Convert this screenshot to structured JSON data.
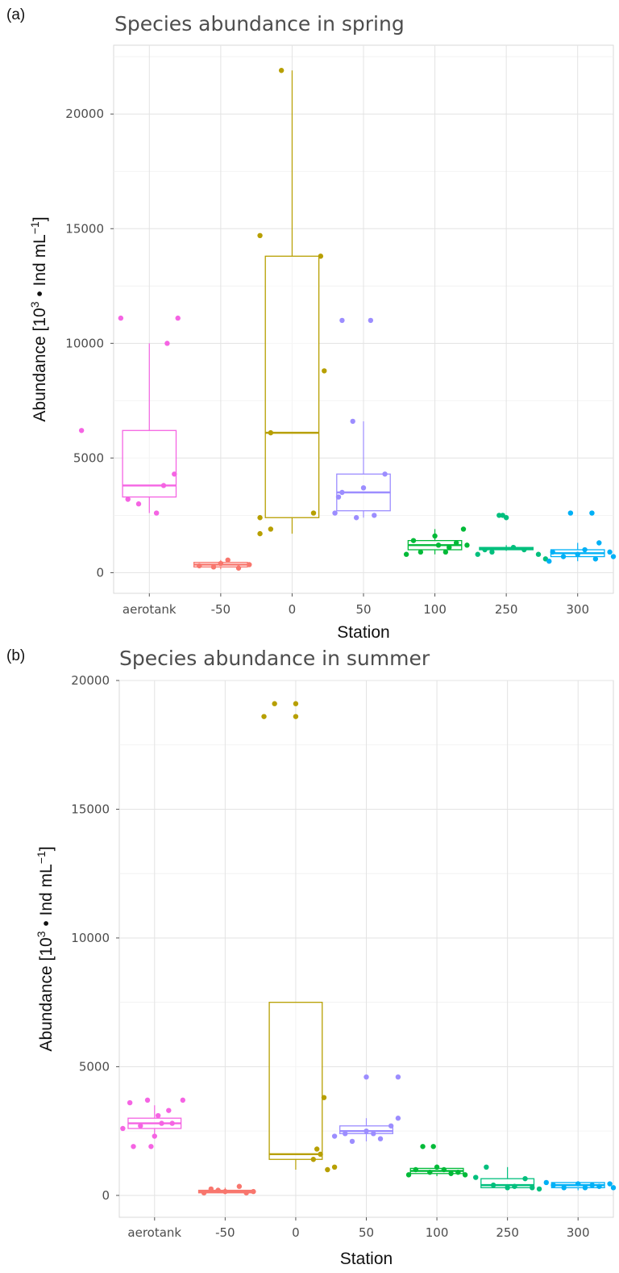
{
  "chart_data": [
    {
      "type": "box",
      "panel_label": "(a)",
      "title": "Species abundance in spring",
      "xlabel": "Station",
      "ylabel_main": "Abundance [10",
      "ylabel_sup1": "3",
      "ylabel_mid": " • Ind mL",
      "ylabel_sup2": "−1",
      "ylabel_end": "]",
      "categories": [
        "aerotank",
        "-50",
        "0",
        "50",
        "100",
        "250",
        "300"
      ],
      "yticks": [
        0,
        5000,
        10000,
        15000,
        20000
      ],
      "ylim": [
        -900,
        23000
      ],
      "grid": true,
      "legend": "none",
      "series": [
        {
          "color": "#f564e3",
          "q1": 3300,
          "median": 3800,
          "q3": 6200,
          "whisker_low": 2600,
          "whisker_high": 10000,
          "points": [
            [
              -0.95,
              6200
            ],
            [
              -0.4,
              11100
            ],
            [
              0.4,
              11100
            ],
            [
              0.25,
              10000
            ],
            [
              0.35,
              4300
            ],
            [
              -0.15,
              3000
            ],
            [
              0.2,
              3800
            ],
            [
              -0.3,
              3200
            ],
            [
              0.1,
              2600
            ]
          ]
        },
        {
          "color": "#f8766d",
          "q1": 250,
          "median": 350,
          "q3": 450,
          "whisker_low": 150,
          "whisker_high": 550,
          "points": [
            [
              -0.3,
              300
            ],
            [
              0.0,
              400
            ],
            [
              0.25,
              200
            ],
            [
              0.4,
              350
            ],
            [
              0.1,
              550
            ],
            [
              -0.1,
              250
            ]
          ]
        },
        {
          "color": "#b79f00",
          "q1": 2400,
          "median": 6100,
          "q3": 13800,
          "whisker_low": 1700,
          "whisker_high": 21900,
          "points": [
            [
              -0.45,
              14700
            ],
            [
              -0.45,
              2400
            ],
            [
              -0.45,
              1700
            ],
            [
              -0.3,
              1900
            ],
            [
              -0.3,
              6100
            ],
            [
              -0.15,
              21900
            ],
            [
              0.4,
              13800
            ],
            [
              0.45,
              8800
            ],
            [
              0.3,
              2600
            ]
          ]
        },
        {
          "color": "#9c8dff",
          "q1": 2700,
          "median": 3500,
          "q3": 4300,
          "whisker_low": 2400,
          "whisker_high": 6600,
          "points": [
            [
              -0.3,
              11000
            ],
            [
              0.1,
              11000
            ],
            [
              -0.15,
              6600
            ],
            [
              -0.3,
              3500
            ],
            [
              -0.35,
              3300
            ],
            [
              0.0,
              3700
            ],
            [
              0.3,
              4300
            ],
            [
              -0.4,
              2600
            ],
            [
              -0.1,
              2400
            ],
            [
              0.15,
              2500
            ]
          ]
        },
        {
          "color": "#00ba38",
          "q1": 1000,
          "median": 1200,
          "q3": 1400,
          "whisker_low": 800,
          "whisker_high": 1900,
          "points": [
            [
              -0.4,
              800
            ],
            [
              -0.3,
              1400
            ],
            [
              -0.2,
              900
            ],
            [
              0.0,
              1600
            ],
            [
              0.05,
              1200
            ],
            [
              0.15,
              900
            ],
            [
              0.3,
              1300
            ],
            [
              0.4,
              1900
            ],
            [
              0.45,
              1200
            ],
            [
              0.2,
              1100
            ]
          ]
        },
        {
          "color": "#00bf7d",
          "q1": 1000,
          "median": 1050,
          "q3": 1100,
          "whisker_low": 950,
          "whisker_high": 1200,
          "points": [
            [
              -0.4,
              800
            ],
            [
              -0.1,
              2500
            ],
            [
              -0.05,
              2500
            ],
            [
              0.0,
              2400
            ],
            [
              -0.3,
              1000
            ],
            [
              0.1,
              1100
            ],
            [
              0.25,
              1000
            ],
            [
              0.45,
              800
            ],
            [
              0.55,
              600
            ],
            [
              -0.2,
              900
            ]
          ]
        },
        {
          "color": "#00b0f6",
          "q1": 700,
          "median": 850,
          "q3": 1000,
          "whisker_low": 500,
          "whisker_high": 1300,
          "points": [
            [
              -0.1,
              2600
            ],
            [
              0.2,
              2600
            ],
            [
              -0.35,
              900
            ],
            [
              -0.2,
              700
            ],
            [
              0.0,
              800
            ],
            [
              0.1,
              1000
            ],
            [
              0.3,
              1300
            ],
            [
              0.45,
              900
            ],
            [
              0.5,
              700
            ],
            [
              0.9,
              1200
            ],
            [
              -0.4,
              500
            ],
            [
              0.25,
              600
            ]
          ]
        }
      ]
    },
    {
      "type": "box",
      "panel_label": "(b)",
      "title": "Species abundance in summer",
      "xlabel": "Station",
      "ylabel_main": "Abundance [10",
      "ylabel_sup1": "3",
      "ylabel_mid": " • Ind mL",
      "ylabel_sup2": "−1",
      "ylabel_end": "]",
      "categories": [
        "aerotank",
        "-50",
        "0",
        "50",
        "100",
        "250",
        "300"
      ],
      "yticks": [
        0,
        5000,
        10000,
        15000,
        20000
      ],
      "ylim": [
        -850,
        20000
      ],
      "grid": true,
      "legend": "none",
      "series": [
        {
          "color": "#f564e3",
          "q1": 2600,
          "median": 2800,
          "q3": 3000,
          "whisker_low": 2300,
          "whisker_high": 3500,
          "points": [
            [
              -0.45,
              2600
            ],
            [
              -0.35,
              3600
            ],
            [
              -0.1,
              3700
            ],
            [
              -0.3,
              1900
            ],
            [
              -0.05,
              1900
            ],
            [
              0.0,
              2300
            ],
            [
              0.1,
              2800
            ],
            [
              0.2,
              3300
            ],
            [
              0.4,
              3700
            ],
            [
              -0.2,
              2700
            ],
            [
              0.25,
              2800
            ],
            [
              0.05,
              3100
            ]
          ]
        },
        {
          "color": "#f8766d",
          "q1": 100,
          "median": 150,
          "q3": 200,
          "whisker_low": 50,
          "whisker_high": 300,
          "points": [
            [
              -0.3,
              100
            ],
            [
              -0.2,
              250
            ],
            [
              0.0,
              150
            ],
            [
              0.2,
              350
            ],
            [
              0.3,
              100
            ],
            [
              0.4,
              150
            ],
            [
              -0.1,
              200
            ]
          ]
        },
        {
          "color": "#b79f00",
          "q1": 1400,
          "median": 1600,
          "q3": 7500,
          "whisker_low": 1000,
          "whisker_high": 7500,
          "points": [
            [
              -0.45,
              18600
            ],
            [
              -0.3,
              19100
            ],
            [
              0.0,
              19100
            ],
            [
              0.0,
              18600
            ],
            [
              0.25,
              1400
            ],
            [
              0.35,
              1600
            ],
            [
              0.4,
              3800
            ],
            [
              0.45,
              1000
            ],
            [
              0.55,
              1100
            ],
            [
              0.3,
              1800
            ]
          ]
        },
        {
          "color": "#9c8dff",
          "q1": 2400,
          "median": 2500,
          "q3": 2700,
          "whisker_low": 2100,
          "whisker_high": 3000,
          "points": [
            [
              0.0,
              4600
            ],
            [
              0.45,
              4600
            ],
            [
              -0.45,
              2300
            ],
            [
              -0.3,
              2400
            ],
            [
              -0.2,
              2100
            ],
            [
              0.0,
              2500
            ],
            [
              0.2,
              2200
            ],
            [
              0.35,
              2700
            ],
            [
              0.45,
              3000
            ],
            [
              0.1,
              2400
            ]
          ]
        },
        {
          "color": "#00ba38",
          "q1": 850,
          "median": 950,
          "q3": 1050,
          "whisker_low": 750,
          "whisker_high": 1200,
          "points": [
            [
              -0.2,
              1900
            ],
            [
              -0.05,
              1900
            ],
            [
              -0.4,
              800
            ],
            [
              -0.3,
              1000
            ],
            [
              -0.1,
              900
            ],
            [
              0.1,
              1000
            ],
            [
              0.3,
              900
            ],
            [
              0.4,
              800
            ],
            [
              0.0,
              1100
            ],
            [
              0.2,
              850
            ]
          ]
        },
        {
          "color": "#00bf7d",
          "q1": 300,
          "median": 400,
          "q3": 650,
          "whisker_low": 200,
          "whisker_high": 1100,
          "points": [
            [
              -0.45,
              700
            ],
            [
              -0.3,
              1100
            ],
            [
              -0.2,
              400
            ],
            [
              0.0,
              300
            ],
            [
              0.1,
              350
            ],
            [
              0.25,
              650
            ],
            [
              0.35,
              300
            ],
            [
              0.45,
              250
            ]
          ]
        },
        {
          "color": "#00b0f6",
          "q1": 300,
          "median": 400,
          "q3": 500,
          "whisker_low": 200,
          "whisker_high": 550,
          "points": [
            [
              -0.45,
              500
            ],
            [
              -0.35,
              400
            ],
            [
              -0.2,
              300
            ],
            [
              0.0,
              450
            ],
            [
              0.1,
              300
            ],
            [
              0.2,
              400
            ],
            [
              0.3,
              350
            ],
            [
              0.45,
              450
            ],
            [
              0.5,
              300
            ]
          ]
        }
      ]
    }
  ]
}
